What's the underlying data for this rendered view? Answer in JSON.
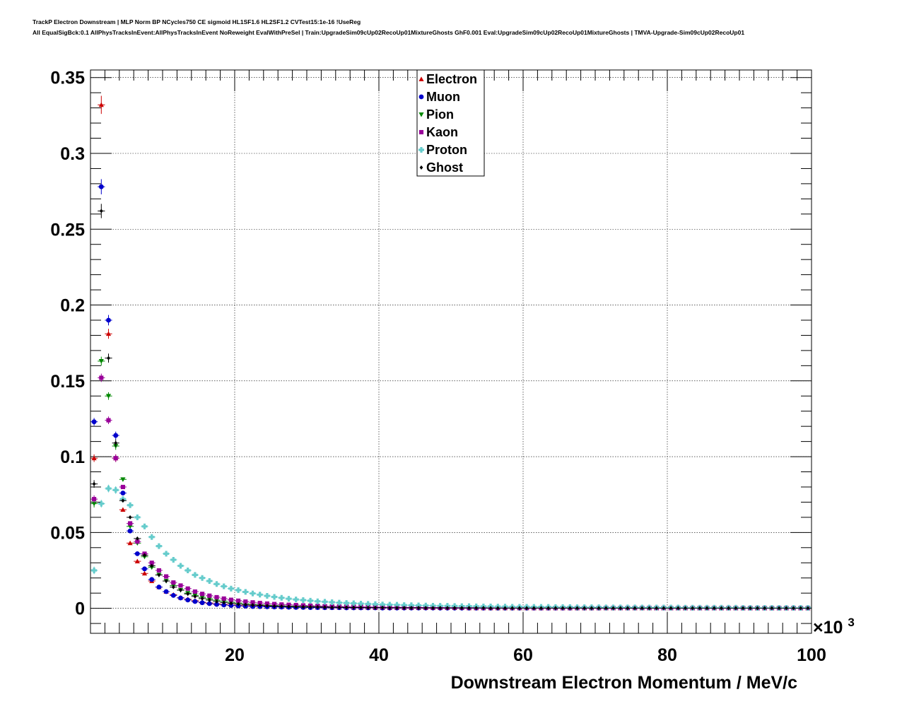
{
  "header": {
    "title_line1": "TrackP Electron Downstream | MLP Norm BP NCycles750 CE sigmoid HL1SF1.6 HL2SF1.2 CVTest15:1e-16 !UseReg",
    "title_line2": "All EqualSigBck:0.1 AllPhysTracksInEvent:AllPhysTracksInEvent NoReweight EvalWithPreSel | Train:UpgradeSim09cUp02RecoUp01MixtureGhosts GhF0.001 Eval:UpgradeSim09cUp02RecoUp01MixtureGhosts | TMVA-Upgrade-Sim09cUp02RecoUp01"
  },
  "chart_data": {
    "type": "scatter",
    "xlabel": "Downstream Electron Momentum / MeV/c",
    "x_multiplier_label": "×10",
    "x_multiplier_exp": "3",
    "xlim": [
      0,
      100
    ],
    "ylim": [
      -0.0165,
      0.355
    ],
    "x_ticks": [
      20,
      40,
      60,
      80,
      100
    ],
    "x_tick_labels": [
      "20",
      "40",
      "60",
      "80",
      "100"
    ],
    "y_ticks": [
      0,
      0.05,
      0.1,
      0.15,
      0.2,
      0.25,
      0.3,
      0.35
    ],
    "y_tick_labels": [
      "0",
      "0.05",
      "0.1",
      "0.15",
      "0.2",
      "0.25",
      "0.3",
      "0.35"
    ],
    "grid": true,
    "legend_position": "top-center",
    "bin_width": 1,
    "x": [
      0.5,
      1.5,
      2.5,
      3.5,
      4.5,
      5.5,
      6.5,
      7.5,
      8.5,
      9.5,
      10.5,
      11.5,
      12.5,
      13.5,
      14.5,
      15.5,
      16.5,
      17.5,
      18.5,
      19.5,
      20.5,
      21.5,
      22.5,
      23.5,
      24.5,
      25.5,
      26.5,
      27.5,
      28.5,
      29.5,
      30.5,
      31.5,
      32.5,
      33.5,
      34.5,
      35.5,
      36.5,
      37.5,
      38.5,
      39.5,
      40.5,
      41.5,
      42.5,
      43.5,
      44.5,
      45.5,
      46.5,
      47.5,
      48.5,
      49.5,
      50.5,
      51.5,
      52.5,
      53.5,
      54.5,
      55.5,
      56.5,
      57.5,
      58.5,
      59.5,
      60.5,
      61.5,
      62.5,
      63.5,
      64.5,
      65.5,
      66.5,
      67.5,
      68.5,
      69.5,
      70.5,
      71.5,
      72.5,
      73.5,
      74.5,
      75.5,
      76.5,
      77.5,
      78.5,
      79.5,
      80.5,
      81.5,
      82.5,
      83.5,
      84.5,
      85.5,
      86.5,
      87.5,
      88.5,
      89.5,
      90.5,
      91.5,
      92.5,
      93.5,
      94.5,
      95.5,
      96.5,
      97.5,
      98.5,
      99.5
    ],
    "series": [
      {
        "name": "Electron",
        "color": "#cc0000",
        "marker": "triangle-up",
        "values": [
          0.099,
          0.332,
          0.181,
          0.099,
          0.065,
          0.043,
          0.031,
          0.023,
          0.018,
          0.014,
          0.011,
          0.009,
          0.007,
          0.006,
          0.005,
          0.004,
          0.0035,
          0.003,
          0.0026,
          0.0022,
          0.0019,
          0.0017,
          0.0015,
          0.0013,
          0.0012,
          0.0011,
          0.001,
          0.0009,
          0.0008,
          0.0007,
          0.0007,
          0.0006,
          0.0006,
          0.0005,
          0.0005,
          0.0005,
          0.0004,
          0.0004,
          0.0004,
          0.0003,
          0.0003,
          0.0003,
          0.0003,
          0.0003,
          0.0002,
          0.0002,
          0.0002,
          0.0002,
          0.0002,
          0.0002,
          0.0002,
          0.0002,
          0.0001,
          0.0001,
          0.0001,
          0.0001,
          0.0001,
          0.0001,
          0.0001,
          0.0001,
          0.0001,
          0.0001,
          0.0001,
          0.0001,
          0.0001,
          0.0001,
          0.0001,
          0.0001,
          0.0001,
          0.0001,
          0.0001,
          0.0001,
          0.0001,
          0.0001,
          0.0001,
          0.0001,
          0.0001,
          0.0001,
          0.0001,
          0.0001,
          0.0001,
          0.0001,
          0.0001,
          0.0001,
          0.0001,
          0.0001,
          0.0001,
          0.0001,
          0.0001,
          0.0001,
          0.0001,
          0.0001,
          0.0001,
          0.0001,
          0.0001,
          0.0001,
          0.0001,
          0.0001,
          0.0001,
          0.0001
        ]
      },
      {
        "name": "Muon",
        "color": "#0000cc",
        "marker": "circle",
        "values": [
          0.123,
          0.278,
          0.19,
          0.114,
          0.076,
          0.051,
          0.036,
          0.026,
          0.019,
          0.014,
          0.011,
          0.0085,
          0.0068,
          0.0055,
          0.0045,
          0.0037,
          0.0031,
          0.0026,
          0.0022,
          0.0019,
          0.0016,
          0.0014,
          0.0012,
          0.0011,
          0.001,
          0.0009,
          0.0008,
          0.0007,
          0.0006,
          0.0006,
          0.0005,
          0.0005,
          0.0004,
          0.0004,
          0.0004,
          0.0003,
          0.0003,
          0.0003,
          0.0003,
          0.0003,
          0.0002,
          0.0002,
          0.0002,
          0.0002,
          0.0002,
          0.0002,
          0.0002,
          0.0002,
          0.0001,
          0.0001,
          0.0001,
          0.0001,
          0.0001,
          0.0001,
          0.0001,
          0.0001,
          0.0001,
          0.0001,
          0.0001,
          0.0001,
          0.0001,
          0.0001,
          0.0001,
          0.0001,
          0.0001,
          0.0001,
          0.0001,
          0.0001,
          0.0001,
          0.0001,
          0.0001,
          0.0001,
          0.0001,
          0.0001,
          0.0001,
          0.0001,
          0.0001,
          0.0001,
          0.0001,
          0.0001,
          0.0001,
          0.0001,
          0.0001,
          0.0001,
          0.0001,
          0.0001,
          0.0001,
          0.0001,
          0.0001,
          0.0001,
          0.0001,
          0.0001,
          0.0001,
          0.0001,
          0.0001,
          0.0001,
          0.0001,
          0.0001,
          0.0001,
          0.0001
        ]
      },
      {
        "name": "Pion",
        "color": "#008800",
        "marker": "triangle-down",
        "values": [
          0.069,
          0.163,
          0.14,
          0.107,
          0.085,
          0.054,
          0.043,
          0.034,
          0.027,
          0.022,
          0.018,
          0.015,
          0.012,
          0.01,
          0.0085,
          0.0072,
          0.0062,
          0.0053,
          0.0046,
          0.004,
          0.0035,
          0.0031,
          0.0027,
          0.0024,
          0.0021,
          0.0019,
          0.0017,
          0.0015,
          0.0014,
          0.0013,
          0.0012,
          0.0011,
          0.001,
          0.0009,
          0.0008,
          0.0008,
          0.0007,
          0.0007,
          0.0006,
          0.0006,
          0.0006,
          0.0005,
          0.0005,
          0.0005,
          0.0004,
          0.0004,
          0.0004,
          0.0004,
          0.0003,
          0.0003,
          0.0003,
          0.0003,
          0.0003,
          0.0003,
          0.0003,
          0.0002,
          0.0002,
          0.0002,
          0.0002,
          0.0002,
          0.0002,
          0.0002,
          0.0002,
          0.0002,
          0.0002,
          0.0002,
          0.0002,
          0.0001,
          0.0001,
          0.0001,
          0.0001,
          0.0001,
          0.0001,
          0.0001,
          0.0001,
          0.0001,
          0.0001,
          0.0001,
          0.0001,
          0.0001,
          0.0001,
          0.0001,
          0.0001,
          0.0001,
          0.0001,
          0.0001,
          0.0001,
          0.0001,
          0.0001,
          0.0001,
          0.0001,
          0.0001,
          0.0001,
          0.0001,
          0.0001,
          0.0001,
          0.0001,
          0.0001,
          0.0001,
          0.0001
        ]
      },
      {
        "name": "Kaon",
        "color": "#990099",
        "marker": "square",
        "values": [
          0.072,
          0.152,
          0.124,
          0.099,
          0.08,
          0.056,
          0.044,
          0.036,
          0.03,
          0.025,
          0.021,
          0.017,
          0.015,
          0.013,
          0.011,
          0.0095,
          0.0083,
          0.0073,
          0.0064,
          0.0056,
          0.005,
          0.0044,
          0.0039,
          0.0035,
          0.0031,
          0.0028,
          0.0025,
          0.0023,
          0.0021,
          0.0019,
          0.0017,
          0.0016,
          0.0014,
          0.0013,
          0.0012,
          0.0011,
          0.001,
          0.001,
          0.0009,
          0.0008,
          0.0008,
          0.0007,
          0.0007,
          0.0006,
          0.0006,
          0.0006,
          0.0005,
          0.0005,
          0.0005,
          0.0004,
          0.0004,
          0.0004,
          0.0004,
          0.0004,
          0.0003,
          0.0003,
          0.0003,
          0.0003,
          0.0003,
          0.0003,
          0.0003,
          0.0002,
          0.0002,
          0.0002,
          0.0002,
          0.0002,
          0.0002,
          0.0002,
          0.0002,
          0.0002,
          0.0002,
          0.0002,
          0.0002,
          0.0002,
          0.0002,
          0.0002,
          0.0002,
          0.0002,
          0.0001,
          0.0001,
          0.0001,
          0.0001,
          0.0001,
          0.0001,
          0.0001,
          0.0001,
          0.0001,
          0.0001,
          0.0001,
          0.0001,
          0.0001,
          0.0001,
          0.0001,
          0.0001,
          0.0001,
          0.0001,
          0.0001,
          0.0001,
          0.0001,
          0.0001
        ]
      },
      {
        "name": "Proton",
        "color": "#66cccc",
        "marker": "cross",
        "values": [
          0.025,
          0.069,
          0.079,
          0.078,
          0.072,
          0.068,
          0.06,
          0.054,
          0.047,
          0.041,
          0.036,
          0.032,
          0.028,
          0.025,
          0.022,
          0.02,
          0.018,
          0.016,
          0.0145,
          0.013,
          0.012,
          0.0108,
          0.0098,
          0.009,
          0.0082,
          0.0075,
          0.0069,
          0.0063,
          0.0058,
          0.0054,
          0.005,
          0.0046,
          0.0043,
          0.004,
          0.0037,
          0.0035,
          0.0033,
          0.0031,
          0.0029,
          0.0027,
          0.0025,
          0.0024,
          0.0023,
          0.0021,
          0.002,
          0.0019,
          0.0018,
          0.0017,
          0.0016,
          0.0016,
          0.0015,
          0.0014,
          0.0014,
          0.0013,
          0.0012,
          0.0012,
          0.0011,
          0.0011,
          0.001,
          0.001,
          0.001,
          0.0009,
          0.0009,
          0.0009,
          0.0008,
          0.0008,
          0.0008,
          0.0007,
          0.0007,
          0.0007,
          0.0007,
          0.0006,
          0.0006,
          0.0006,
          0.0006,
          0.0006,
          0.0005,
          0.0005,
          0.0005,
          0.0005,
          0.0005,
          0.0005,
          0.0004,
          0.0004,
          0.0004,
          0.0004,
          0.0004,
          0.0004,
          0.0004,
          0.0004,
          0.0003,
          0.0003,
          0.0003,
          0.0003,
          0.0003,
          0.0003,
          0.0003,
          0.0003,
          0.0003,
          0.0003
        ]
      },
      {
        "name": "Ghost",
        "color": "#000000",
        "marker": "diamond",
        "values": [
          0.082,
          0.262,
          0.165,
          0.109,
          0.071,
          0.06,
          0.046,
          0.035,
          0.028,
          0.022,
          0.018,
          0.014,
          0.012,
          0.0095,
          0.0078,
          0.0064,
          0.0054,
          0.0045,
          0.0038,
          0.0033,
          0.0028,
          0.0024,
          0.0021,
          0.0019,
          0.0016,
          0.0014,
          0.0013,
          0.0011,
          0.001,
          0.0009,
          0.0008,
          0.0008,
          0.0007,
          0.0006,
          0.0006,
          0.0005,
          0.0005,
          0.0005,
          0.0004,
          0.0004,
          0.0004,
          0.0003,
          0.0003,
          0.0003,
          0.0003,
          0.0003,
          0.0002,
          0.0002,
          0.0002,
          0.0002,
          0.0002,
          0.0002,
          0.0002,
          0.0002,
          0.0002,
          0.0001,
          0.0001,
          0.0001,
          0.0001,
          0.0001,
          0.0001,
          0.0001,
          0.0001,
          0.0001,
          0.0001,
          0.0001,
          0.0001,
          0.0001,
          0.0001,
          0.0001,
          0.0001,
          0.0001,
          0.0001,
          0.0001,
          0.0001,
          0.0001,
          0.0001,
          0.0001,
          0.0001,
          0.0001,
          0.0001,
          0.0001,
          0.0001,
          0.0001,
          0.0001,
          0.0001,
          0.0001,
          0.0001,
          0.0001,
          0.0001,
          0.0001,
          0.0001,
          0.0001,
          0.0001,
          0.0001,
          0.0001,
          0.0001,
          0.0001,
          0.0001,
          0.0001
        ]
      }
    ]
  }
}
